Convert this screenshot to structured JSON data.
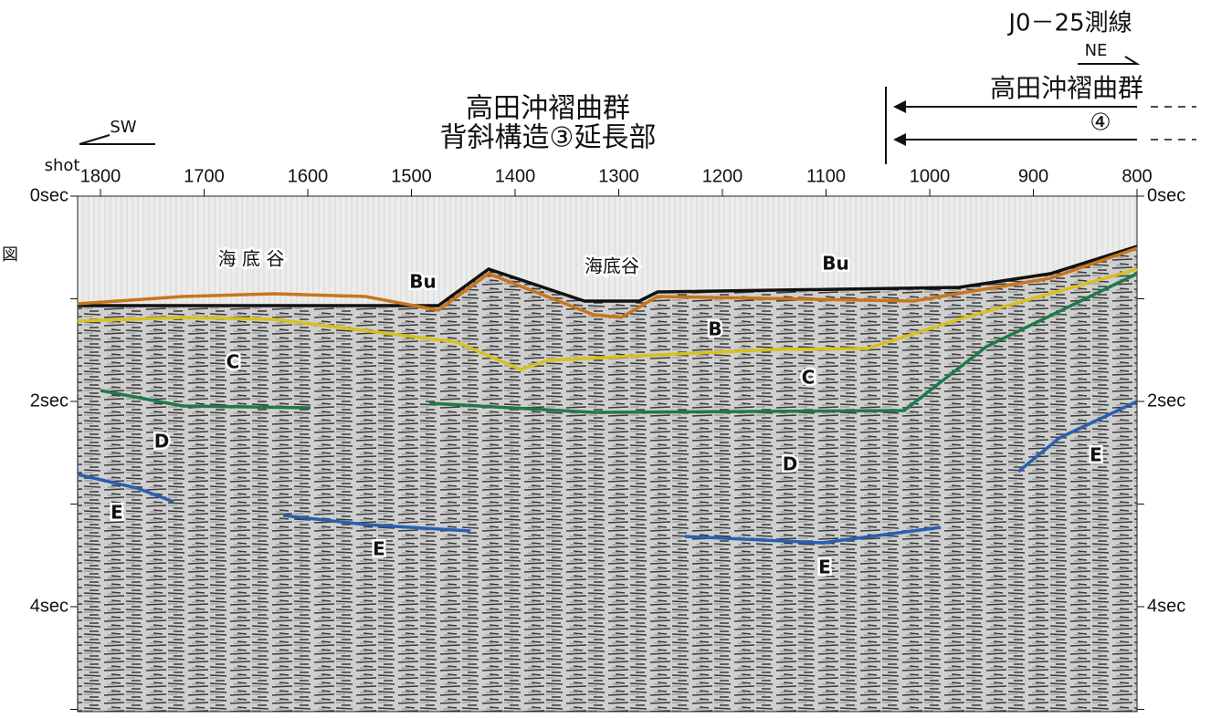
{
  "header": {
    "line_name": "J0－25測線",
    "direction_right": "NE",
    "direction_left": "SW",
    "title_center_1": "高田沖褶曲群",
    "title_center_2": "背斜構造③延長部",
    "title_right": "高田沖褶曲群",
    "title_right_number": "④",
    "edge_text": "図"
  },
  "axes": {
    "x_caption": "shot",
    "x_ticks": [
      "1800",
      "1700",
      "1600",
      "1500",
      "1400",
      "1300",
      "1200",
      "1100",
      "1000",
      "900",
      "800"
    ],
    "y_ticks": [
      "0sec",
      "2sec",
      "4sec"
    ]
  },
  "labels": {
    "canyon_1": "海 底 谷",
    "canyon_2": "海底谷",
    "bu_1": "Bu",
    "bu_2": "Bu",
    "b": "B",
    "c_1": "C",
    "c_2": "C",
    "d_1": "D",
    "d_2": "D",
    "e_1": "E",
    "e_2": "E",
    "e_3": "E",
    "e_4": "E"
  }
}
